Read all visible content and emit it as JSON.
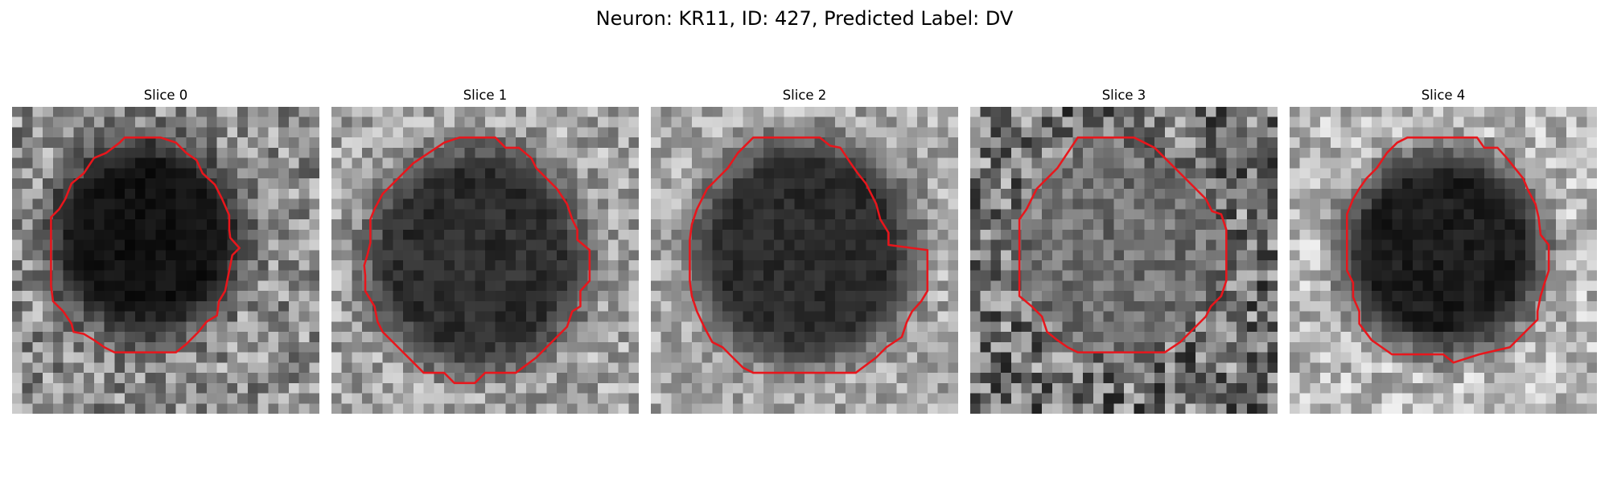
{
  "figure": {
    "title": "Neuron: KR11, ID: 427, Predicted Label: DV"
  },
  "contour_color": "#e8161c",
  "panels": [
    {
      "label": "Slice 0",
      "seed": 11,
      "bg_mean": 0.56,
      "bg_spread": 0.26,
      "blob_value": 0.07,
      "blob_spread": 0.09,
      "blob_center": [
        13.2,
        12.8
      ],
      "blob_radius": 9.6
    },
    {
      "label": "Slice 1",
      "seed": 23,
      "bg_mean": 0.64,
      "bg_spread": 0.22,
      "blob_value": 0.18,
      "blob_spread": 0.15,
      "blob_center": [
        14.2,
        14.8
      ],
      "blob_radius": 11.0
    },
    {
      "label": "Slice 2",
      "seed": 37,
      "bg_mean": 0.66,
      "bg_spread": 0.2,
      "blob_value": 0.17,
      "blob_spread": 0.12,
      "blob_center": [
        15.0,
        14.0
      ],
      "blob_radius": 11.0
    },
    {
      "label": "Slice 3",
      "seed": 41,
      "bg_mean": 0.46,
      "bg_spread": 0.34,
      "blob_value": 0.44,
      "blob_spread": 0.3,
      "blob_center": [
        14.5,
        13.5
      ],
      "blob_radius": 9.5
    },
    {
      "label": "Slice 4",
      "seed": 53,
      "bg_mean": 0.72,
      "bg_spread": 0.22,
      "blob_value": 0.11,
      "blob_spread": 0.12,
      "blob_center": [
        15.0,
        14.2
      ],
      "blob_radius": 10.0
    }
  ]
}
